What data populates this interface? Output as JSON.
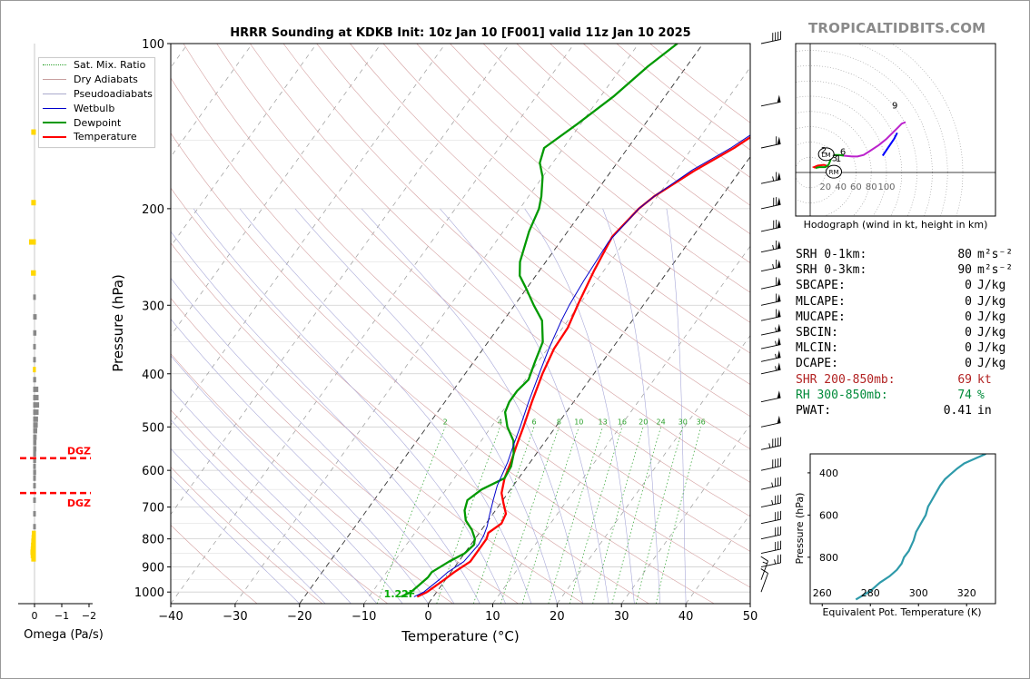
{
  "chart_data": [
    {
      "type": "line",
      "name": "skewt",
      "title": "HRRR Sounding at KDKB Init: 10z Jan 10 [F001] valid 11z Jan 10 2025",
      "xlabel": "Temperature (°C)",
      "ylabel": "Pressure (hPa)",
      "xlim": [
        -40,
        50
      ],
      "ylim": [
        1050,
        100
      ],
      "xticks": [
        -40,
        -30,
        -20,
        -10,
        0,
        10,
        20,
        30,
        40,
        50
      ],
      "xtick_labels": [
        "−40",
        "−30",
        "−20",
        "−10",
        "0",
        "10",
        "20",
        "30",
        "40",
        "50"
      ],
      "yticks": [
        100,
        200,
        300,
        400,
        500,
        600,
        700,
        800,
        900,
        1000
      ],
      "yscale": "log",
      "grid": true,
      "legend_position": "top-left",
      "legend": [
        "Sat. Mix. Ratio",
        "Dry Adiabats",
        "Pseudoadiabats",
        "Wetbulb",
        "Dewpoint",
        "Temperature"
      ],
      "mixing_ratio_labels": [
        "2",
        "4",
        "6",
        "8",
        "10",
        "13",
        "16",
        "20",
        "24",
        "30",
        "36"
      ],
      "surface_annotation": "1.22F",
      "series": [
        {
          "name": "Temperature",
          "color": "#ff0000",
          "points": [
            [
              -2.5,
              1020
            ],
            [
              -1.5,
              1000
            ],
            [
              -0.2,
              950
            ],
            [
              0.5,
              920
            ],
            [
              1.8,
              880
            ],
            [
              1.8,
              800
            ],
            [
              1.4,
              780
            ],
            [
              2.4,
              750
            ],
            [
              2,
              720
            ],
            [
              0.5,
              690
            ],
            [
              -1,
              660
            ],
            [
              -2.2,
              620
            ],
            [
              -3,
              580
            ],
            [
              -4,
              540
            ],
            [
              -5,
              500
            ],
            [
              -6.5,
              450
            ],
            [
              -8,
              400
            ],
            [
              -9,
              360
            ],
            [
              -9.2,
              330
            ],
            [
              -10.2,
              300
            ],
            [
              -11.5,
              260
            ],
            [
              -12.5,
              225
            ],
            [
              -11.5,
              200
            ],
            [
              -10.5,
              190
            ],
            [
              -7,
              170
            ],
            [
              -3.5,
              155
            ],
            [
              -0.5,
              140
            ],
            [
              1,
              130
            ],
            [
              2,
              120
            ],
            [
              4,
              110
            ],
            [
              5.8,
              100
            ]
          ]
        },
        {
          "name": "Dewpoint",
          "color": "#009900",
          "points": [
            [
              -5,
              1020
            ],
            [
              -4,
              1000
            ],
            [
              -3.5,
              970
            ],
            [
              -3,
              940
            ],
            [
              -3,
              920
            ],
            [
              -1.5,
              880
            ],
            [
              0,
              850
            ],
            [
              0.5,
              820
            ],
            [
              0,
              800
            ],
            [
              -1.5,
              770
            ],
            [
              -3.5,
              740
            ],
            [
              -4.8,
              710
            ],
            [
              -5.5,
              680
            ],
            [
              -4.5,
              650
            ],
            [
              -2.2,
              620
            ],
            [
              -2.5,
              590
            ],
            [
              -3.5,
              560
            ],
            [
              -5,
              530
            ],
            [
              -7.5,
              500
            ],
            [
              -9.5,
              470
            ],
            [
              -10,
              450
            ],
            [
              -10,
              430
            ],
            [
              -9.5,
              410
            ],
            [
              -10.5,
              380
            ],
            [
              -11.5,
              350
            ],
            [
              -14,
              320
            ],
            [
              -17,
              300
            ],
            [
              -20,
              280
            ],
            [
              -22.5,
              265
            ],
            [
              -24,
              250
            ],
            [
              -26,
              220
            ],
            [
              -27,
              200
            ],
            [
              -28,
              190
            ],
            [
              -30,
              175
            ],
            [
              -32,
              165
            ],
            [
              -33,
              155
            ],
            [
              -30.5,
              140
            ],
            [
              -28,
              125
            ],
            [
              -26,
              110
            ],
            [
              -24,
              100
            ]
          ]
        },
        {
          "name": "Wetbulb",
          "color": "#0000cc",
          "points": [
            [
              -3,
              1020
            ],
            [
              -2,
              1000
            ],
            [
              -1,
              950
            ],
            [
              -0.5,
              920
            ],
            [
              0.8,
              880
            ],
            [
              1.2,
              820
            ],
            [
              1,
              790
            ],
            [
              0.5,
              760
            ],
            [
              -0.5,
              720
            ],
            [
              -1.5,
              680
            ],
            [
              -2.5,
              640
            ],
            [
              -3.5,
              580
            ],
            [
              -4.5,
              540
            ],
            [
              -5.5,
              500
            ],
            [
              -7,
              450
            ],
            [
              -8.5,
              400
            ],
            [
              -9.8,
              360
            ],
            [
              -11,
              320
            ],
            [
              -11.5,
              300
            ],
            [
              -12,
              270
            ],
            [
              -12.5,
              230
            ],
            [
              -11.5,
              200
            ],
            [
              -10.5,
              190
            ],
            [
              -7.5,
              170
            ],
            [
              -4,
              155
            ],
            [
              -1,
              140
            ],
            [
              0.5,
              130
            ],
            [
              1.5,
              120
            ],
            [
              3.5,
              110
            ],
            [
              5.5,
              100
            ]
          ]
        }
      ]
    },
    {
      "type": "line",
      "name": "hodograph",
      "xlabel": "Hodograph (wind in kt, height in km)",
      "ring_labels": [
        "20",
        "40",
        "60",
        "80",
        "100"
      ],
      "markers": [
        "LM",
        "RM"
      ],
      "height_labels": [
        "1",
        "2",
        "3",
        "6",
        "9"
      ],
      "points": [
        [
          24,
          8
        ],
        [
          18,
          10
        ],
        [
          10,
          9
        ],
        [
          5,
          7
        ],
        [
          7,
          6
        ],
        [
          12,
          7
        ],
        [
          20,
          7
        ],
        [
          24,
          10
        ],
        [
          28,
          20
        ],
        [
          32,
          23
        ],
        [
          38,
          23
        ],
        [
          44,
          22
        ],
        [
          55,
          21
        ],
        [
          62,
          21
        ],
        [
          70,
          23
        ],
        [
          78,
          28
        ],
        [
          90,
          36
        ],
        [
          100,
          44
        ],
        [
          108,
          52
        ],
        [
          114,
          58
        ],
        [
          120,
          64
        ],
        [
          125,
          66
        ]
      ],
      "storm_motion_points": [
        [
          95,
          22
        ],
        [
          110,
          44
        ],
        [
          114,
          52
        ]
      ],
      "lm": [
        21,
        24
      ],
      "rm": [
        31,
        1
      ]
    },
    {
      "type": "line",
      "name": "theta-e",
      "xlabel": "Equivalent Pot. Temperature (K)",
      "ylabel": "Pressure (hPa)",
      "xlim": [
        255,
        332
      ],
      "ylim": [
        1020,
        310
      ],
      "xticks": [
        260,
        280,
        300,
        320
      ],
      "yticks": [
        400,
        600,
        800
      ],
      "color": "#2e9aaa",
      "points": [
        [
          274,
          1000
        ],
        [
          277,
          980
        ],
        [
          280,
          960
        ],
        [
          282,
          940
        ],
        [
          284,
          920
        ],
        [
          288,
          890
        ],
        [
          291,
          860
        ],
        [
          293,
          830
        ],
        [
          294,
          800
        ],
        [
          296,
          770
        ],
        [
          298,
          720
        ],
        [
          299,
          680
        ],
        [
          301,
          640
        ],
        [
          303,
          600
        ],
        [
          304,
          560
        ],
        [
          305,
          540
        ],
        [
          307,
          500
        ],
        [
          309,
          460
        ],
        [
          311,
          430
        ],
        [
          313,
          410
        ],
        [
          316,
          380
        ],
        [
          319,
          355
        ],
        [
          324,
          330
        ],
        [
          328,
          310
        ]
      ]
    },
    {
      "type": "bar",
      "name": "omega",
      "xlabel": "Omega (Pa/s)",
      "xticks": [
        0,
        -1,
        -2
      ],
      "xtick_labels": [
        "0",
        "−1",
        "−2"
      ],
      "dgz_label": "DGZ",
      "dgz_pressures": [
        570,
        660
      ],
      "values": [
        [
          0.07,
          145
        ],
        [
          0.07,
          195
        ],
        [
          0.15,
          230
        ],
        [
          0.08,
          262
        ],
        [
          0.0,
          290
        ],
        [
          -0.03,
          315
        ],
        [
          -0.02,
          337
        ],
        [
          0.0,
          357
        ],
        [
          0.0,
          377
        ],
        [
          0.01,
          393
        ],
        [
          -0.01,
          410
        ],
        [
          -0.09,
          427
        ],
        [
          -0.1,
          442
        ],
        [
          -0.12,
          456
        ],
        [
          -0.1,
          470
        ],
        [
          -0.08,
          484
        ],
        [
          -0.07,
          496
        ],
        [
          -0.05,
          508
        ],
        [
          -0.03,
          522
        ],
        [
          -0.02,
          534
        ],
        [
          -0.02,
          548
        ],
        [
          -0.01,
          560
        ],
        [
          -0.01,
          575
        ],
        [
          0.0,
          590
        ],
        [
          -0.01,
          605
        ],
        [
          0.0,
          620
        ],
        [
          0.0,
          640
        ],
        [
          0.0,
          680
        ],
        [
          0.0,
          720
        ],
        [
          0.0,
          760
        ],
        [
          0.05,
          782
        ],
        [
          0.06,
          796
        ],
        [
          0.07,
          808
        ],
        [
          0.08,
          822
        ],
        [
          0.09,
          836
        ],
        [
          0.1,
          846
        ],
        [
          0.09,
          858
        ],
        [
          0.07,
          870
        ]
      ]
    }
  ],
  "brand": "TROPICALTIDBITS.COM",
  "indices": [
    {
      "label": "SRH 0-1km:",
      "value": "80",
      "unit": "m²s⁻²",
      "color": "#000000"
    },
    {
      "label": "SRH 0-3km:",
      "value": "90",
      "unit": "m²s⁻²",
      "color": "#000000"
    },
    {
      "label": "SBCAPE:",
      "value": "0",
      "unit": "J/kg",
      "color": "#000000"
    },
    {
      "label": "MLCAPE:",
      "value": "0",
      "unit": "J/kg",
      "color": "#000000"
    },
    {
      "label": "MUCAPE:",
      "value": "0",
      "unit": "J/kg",
      "color": "#000000"
    },
    {
      "label": "SBCIN:",
      "value": "0",
      "unit": "J/kg",
      "color": "#000000"
    },
    {
      "label": "MLCIN:",
      "value": "0",
      "unit": "J/kg",
      "color": "#000000"
    },
    {
      "label": "DCAPE:",
      "value": "0",
      "unit": "J/kg",
      "color": "#000000"
    },
    {
      "label": "SHR 200-850mb:",
      "value": "69",
      "unit": "kt",
      "color": "#b22222"
    },
    {
      "label": "RH 300-850mb:",
      "value": "74",
      "unit": "%",
      "color": "#008a3a"
    },
    {
      "label": "PWAT:",
      "value": "0.41",
      "unit": "in",
      "color": "#000000"
    }
  ],
  "barbs": [
    {
      "p": 100,
      "speed": 40
    },
    {
      "p": 130,
      "speed": 50
    },
    {
      "p": 155,
      "speed": 60
    },
    {
      "p": 180,
      "speed": 65
    },
    {
      "p": 200,
      "speed": 70
    },
    {
      "p": 220,
      "speed": 70
    },
    {
      "p": 240,
      "speed": 65
    },
    {
      "p": 260,
      "speed": 65
    },
    {
      "p": 280,
      "speed": 60
    },
    {
      "p": 300,
      "speed": 60
    },
    {
      "p": 320,
      "speed": 60
    },
    {
      "p": 340,
      "speed": 55
    },
    {
      "p": 360,
      "speed": 55
    },
    {
      "p": 380,
      "speed": 55
    },
    {
      "p": 400,
      "speed": 55
    },
    {
      "p": 450,
      "speed": 50
    },
    {
      "p": 500,
      "speed": 50
    },
    {
      "p": 550,
      "speed": 45
    },
    {
      "p": 600,
      "speed": 40
    },
    {
      "p": 650,
      "speed": 35
    },
    {
      "p": 700,
      "speed": 35
    },
    {
      "p": 750,
      "speed": 30
    },
    {
      "p": 800,
      "speed": 30
    },
    {
      "p": 850,
      "speed": 30
    },
    {
      "p": 900,
      "speed": 25
    },
    {
      "p": 950,
      "speed": 15
    },
    {
      "p": 1000,
      "speed": 10
    }
  ]
}
